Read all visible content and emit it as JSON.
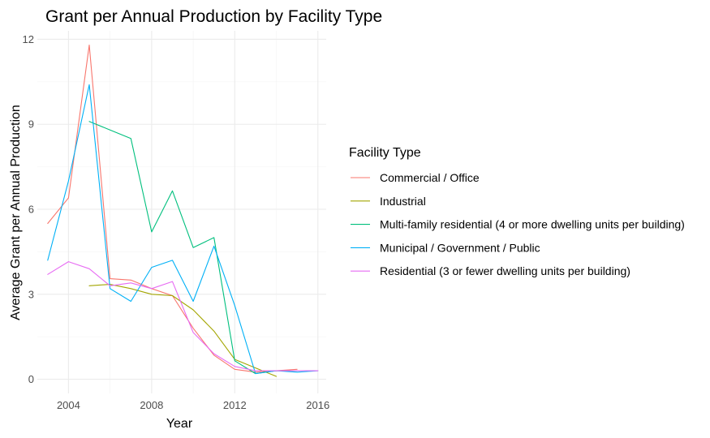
{
  "chart_data": {
    "type": "line",
    "title": "Grant per Annual Production by Facility Type",
    "xlabel": "Year",
    "ylabel": "Average Grant per Annual Production",
    "xlim": [
      2002.5,
      2016.4
    ],
    "ylim": [
      -0.5,
      12.3
    ],
    "x_ticks": [
      2004,
      2008,
      2012,
      2016
    ],
    "y_ticks": [
      0,
      3,
      6,
      9,
      12
    ],
    "x_tick_labels": [
      "2004",
      "2008",
      "2012",
      "2016"
    ],
    "y_tick_labels": [
      "0",
      "3",
      "6",
      "9",
      "12"
    ],
    "grid": true,
    "legend": {
      "title": "Facility Type",
      "position": "right"
    },
    "series": [
      {
        "name": "Commercial / Office",
        "color": "#F8766D",
        "points": [
          [
            2003,
            5.5
          ],
          [
            2004,
            6.4
          ],
          [
            2005,
            11.8
          ],
          [
            2006,
            3.55
          ],
          [
            2007,
            3.5
          ],
          [
            2008,
            3.2
          ],
          [
            2009,
            2.95
          ],
          [
            2010,
            1.8
          ],
          [
            2011,
            0.85
          ],
          [
            2012,
            0.35
          ],
          [
            2013,
            0.25
          ],
          [
            2014,
            0.3
          ],
          [
            2015,
            0.35
          ]
        ]
      },
      {
        "name": "Industrial",
        "color": "#A3A500",
        "points": [
          [
            2005,
            3.3
          ],
          [
            2006,
            3.35
          ],
          [
            2007,
            3.2
          ],
          [
            2008,
            3.0
          ],
          [
            2009,
            2.95
          ],
          [
            2010,
            2.45
          ],
          [
            2011,
            1.7
          ],
          [
            2012,
            0.7
          ],
          [
            2013,
            0.4
          ],
          [
            2014,
            0.1
          ]
        ]
      },
      {
        "name": "Multi-family residential (4 or more dwelling units per building)",
        "color": "#00BF7D",
        "points": [
          [
            2005,
            9.1
          ],
          [
            2006,
            8.8
          ],
          [
            2007,
            8.5
          ],
          [
            2008,
            5.2
          ],
          [
            2009,
            6.65
          ],
          [
            2010,
            4.65
          ],
          [
            2011,
            5.0
          ],
          [
            2012,
            0.65
          ],
          [
            2013,
            0.2
          ],
          [
            2014,
            0.3
          ],
          [
            2015,
            0.3
          ]
        ]
      },
      {
        "name": "Municipal / Government / Public",
        "color": "#00B0F6",
        "points": [
          [
            2003,
            4.2
          ],
          [
            2004,
            7.0
          ],
          [
            2005,
            10.4
          ],
          [
            2006,
            3.2
          ],
          [
            2007,
            2.75
          ],
          [
            2008,
            3.95
          ],
          [
            2009,
            4.2
          ],
          [
            2010,
            2.75
          ],
          [
            2011,
            4.7
          ],
          [
            2012,
            2.6
          ],
          [
            2013,
            0.2
          ],
          [
            2014,
            0.3
          ],
          [
            2015,
            0.25
          ],
          [
            2016,
            0.3
          ]
        ]
      },
      {
        "name": "Residential (3 or fewer dwelling units per building)",
        "color": "#E76BF3",
        "points": [
          [
            2003,
            3.7
          ],
          [
            2004,
            4.15
          ],
          [
            2005,
            3.9
          ],
          [
            2006,
            3.3
          ],
          [
            2007,
            3.4
          ],
          [
            2008,
            3.2
          ],
          [
            2009,
            3.45
          ],
          [
            2010,
            1.65
          ],
          [
            2011,
            0.9
          ],
          [
            2012,
            0.45
          ],
          [
            2013,
            0.3
          ],
          [
            2014,
            0.3
          ],
          [
            2015,
            0.3
          ],
          [
            2016,
            0.3
          ]
        ]
      }
    ]
  }
}
